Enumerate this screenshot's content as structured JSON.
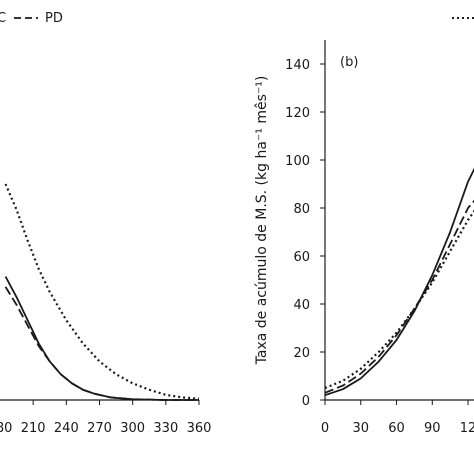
{
  "chart_data": [
    {
      "type": "line",
      "panel": "left",
      "xlim": [
        180,
        360
      ],
      "ylim": [
        0,
        140
      ],
      "xticks": [
        "210",
        "240",
        "270",
        "300",
        "330",
        "360"
      ],
      "legend": [
        {
          "label": "C",
          "style": "solid"
        },
        {
          "label": "PD",
          "style": "dashed"
        }
      ],
      "series": [
        {
          "name": "C",
          "style": "solid",
          "x": [
            185,
            195,
            205,
            215,
            225,
            235,
            245,
            255,
            265,
            280,
            300,
            330,
            360
          ],
          "y": [
            48,
            40,
            31,
            22,
            15,
            10,
            6.5,
            4,
            2.5,
            1,
            0.3,
            0,
            0
          ]
        },
        {
          "name": "PD",
          "style": "dashed",
          "x": [
            185,
            195,
            205,
            215,
            225,
            235,
            245,
            255,
            265,
            280,
            300,
            330,
            360
          ],
          "y": [
            44,
            37,
            29,
            21,
            15,
            10,
            6.5,
            4,
            2.5,
            1,
            0.3,
            0,
            0
          ]
        },
        {
          "name": "",
          "style": "dotted",
          "x": [
            185,
            195,
            205,
            215,
            225,
            240,
            255,
            270,
            285,
            300,
            315,
            330,
            345,
            360
          ],
          "y": [
            84,
            74,
            62,
            51,
            42,
            31,
            22,
            15,
            10,
            6.5,
            4,
            2,
            1,
            0.5
          ]
        }
      ]
    },
    {
      "type": "line",
      "panel": "right",
      "panel_label": "(b)",
      "ylabel": "Taxa de acúmulo de M.S. (kg ha⁻¹ mês⁻¹)",
      "xlim": [
        0,
        125
      ],
      "ylim": [
        0,
        150
      ],
      "yticks": [
        0,
        20,
        40,
        60,
        80,
        100,
        120,
        140
      ],
      "xticks": [
        "0",
        "30",
        "60",
        "90",
        "12"
      ],
      "series": [
        {
          "name": "C",
          "style": "solid",
          "x": [
            0,
            15,
            30,
            45,
            60,
            75,
            90,
            105,
            120,
            127
          ],
          "y": [
            2,
            4.5,
            9,
            16,
            25,
            37,
            52,
            70,
            91,
            98
          ]
        },
        {
          "name": "PD",
          "style": "dashed",
          "x": [
            0,
            15,
            30,
            45,
            60,
            75,
            90,
            105,
            120,
            127
          ],
          "y": [
            3,
            6,
            11,
            18,
            27,
            38,
            50,
            65,
            80,
            84
          ]
        },
        {
          "name": "",
          "style": "dotted",
          "x": [
            0,
            15,
            30,
            45,
            60,
            75,
            90,
            105,
            120,
            127
          ],
          "y": [
            5,
            8,
            13,
            20,
            28,
            38,
            49,
            62,
            75,
            80
          ]
        }
      ]
    }
  ]
}
